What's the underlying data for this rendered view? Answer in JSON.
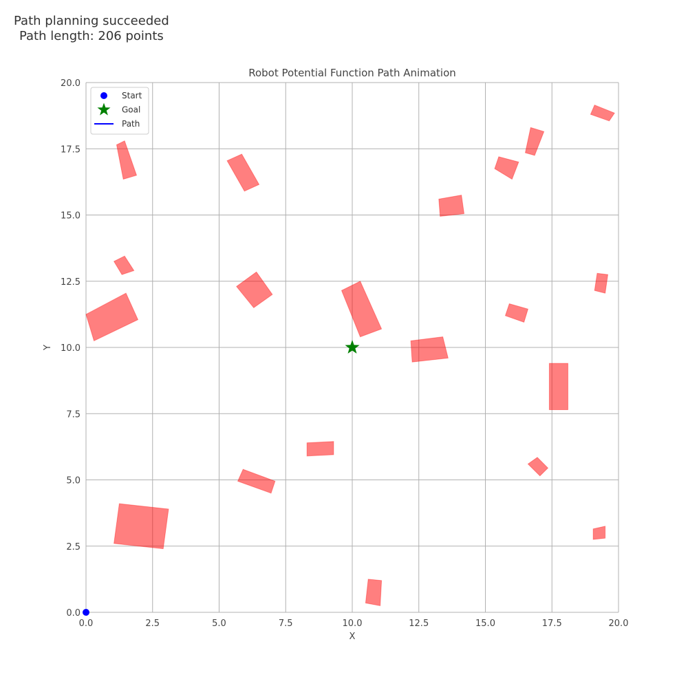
{
  "status": {
    "line1": "Path planning succeeded",
    "line2": "Path length: 206 points"
  },
  "chart_data": {
    "type": "scatter",
    "title": "Robot Potential Function Path Animation",
    "xlabel": "X",
    "ylabel": "Y",
    "xlim": [
      0,
      20
    ],
    "ylim": [
      0,
      20
    ],
    "xticks": [
      "0.0",
      "2.5",
      "5.0",
      "7.5",
      "10.0",
      "12.5",
      "15.0",
      "17.5",
      "20.0"
    ],
    "yticks": [
      "0.0",
      "2.5",
      "5.0",
      "7.5",
      "10.0",
      "12.5",
      "15.0",
      "17.5",
      "20.0"
    ],
    "grid": true,
    "legend": {
      "placement": "top-left",
      "entries": [
        {
          "label": "Start",
          "marker": "circle",
          "color": "#0000ff"
        },
        {
          "label": "Goal",
          "marker": "star",
          "color": "#008000"
        },
        {
          "label": "Path",
          "marker": "line",
          "color": "#0000ff"
        }
      ]
    },
    "start": {
      "x": 0,
      "y": 0
    },
    "goal": {
      "x": 10,
      "y": 10
    },
    "obstacle_color": "#ff0000",
    "obstacle_alpha": 0.5,
    "obstacles": [
      {
        "corners": [
          [
            1.15,
            17.65
          ],
          [
            1.45,
            17.8
          ],
          [
            1.9,
            16.5
          ],
          [
            1.4,
            16.35
          ]
        ]
      },
      {
        "corners": [
          [
            5.3,
            17.05
          ],
          [
            5.85,
            17.3
          ],
          [
            6.5,
            16.15
          ],
          [
            5.95,
            15.9
          ]
        ]
      },
      {
        "corners": [
          [
            1.05,
            13.25
          ],
          [
            1.45,
            13.45
          ],
          [
            1.8,
            12.9
          ],
          [
            1.35,
            12.75
          ]
        ]
      },
      {
        "corners": [
          [
            0,
            11.25
          ],
          [
            1.5,
            12.05
          ],
          [
            1.95,
            11.05
          ],
          [
            0.3,
            10.25
          ]
        ]
      },
      {
        "corners": [
          [
            5.65,
            12.3
          ],
          [
            6.4,
            12.85
          ],
          [
            7.0,
            12.0
          ],
          [
            6.3,
            11.5
          ]
        ]
      },
      {
        "corners": [
          [
            9.6,
            12.15
          ],
          [
            10.3,
            12.5
          ],
          [
            11.1,
            10.7
          ],
          [
            10.3,
            10.4
          ]
        ]
      },
      {
        "corners": [
          [
            12.2,
            10.25
          ],
          [
            13.4,
            10.4
          ],
          [
            13.6,
            9.6
          ],
          [
            12.25,
            9.45
          ]
        ]
      },
      {
        "corners": [
          [
            13.25,
            15.6
          ],
          [
            14.1,
            15.75
          ],
          [
            14.2,
            15.05
          ],
          [
            13.3,
            14.95
          ]
        ]
      },
      {
        "corners": [
          [
            15.35,
            16.75
          ],
          [
            15.5,
            17.2
          ],
          [
            16.25,
            17.0
          ],
          [
            16.0,
            16.35
          ]
        ]
      },
      {
        "corners": [
          [
            16.7,
            18.3
          ],
          [
            17.2,
            18.15
          ],
          [
            16.85,
            17.25
          ],
          [
            16.5,
            17.35
          ]
        ]
      },
      {
        "corners": [
          [
            18.95,
            18.8
          ],
          [
            19.1,
            19.15
          ],
          [
            19.85,
            18.85
          ],
          [
            19.65,
            18.55
          ]
        ]
      },
      {
        "corners": [
          [
            19.2,
            12.8
          ],
          [
            19.6,
            12.75
          ],
          [
            19.5,
            12.05
          ],
          [
            19.1,
            12.15
          ]
        ]
      },
      {
        "corners": [
          [
            15.75,
            11.2
          ],
          [
            15.9,
            11.65
          ],
          [
            16.6,
            11.45
          ],
          [
            16.45,
            10.95
          ]
        ]
      },
      {
        "corners": [
          [
            17.4,
            9.4
          ],
          [
            18.1,
            9.4
          ],
          [
            18.1,
            7.65
          ],
          [
            17.4,
            7.65
          ]
        ]
      },
      {
        "corners": [
          [
            8.3,
            6.4
          ],
          [
            9.3,
            6.45
          ],
          [
            9.3,
            5.95
          ],
          [
            8.3,
            5.9
          ]
        ]
      },
      {
        "corners": [
          [
            5.7,
            4.95
          ],
          [
            5.9,
            5.4
          ],
          [
            7.1,
            4.95
          ],
          [
            6.95,
            4.5
          ]
        ]
      },
      {
        "corners": [
          [
            16.6,
            5.6
          ],
          [
            16.95,
            5.85
          ],
          [
            17.35,
            5.45
          ],
          [
            17.05,
            5.15
          ]
        ]
      },
      {
        "corners": [
          [
            1.25,
            4.1
          ],
          [
            1.05,
            2.6
          ],
          [
            2.9,
            2.4
          ],
          [
            3.1,
            3.9
          ]
        ]
      },
      {
        "corners": [
          [
            19.05,
            3.15
          ],
          [
            19.5,
            3.25
          ],
          [
            19.5,
            2.8
          ],
          [
            19.05,
            2.75
          ]
        ]
      },
      {
        "corners": [
          [
            10.6,
            1.25
          ],
          [
            11.1,
            1.2
          ],
          [
            11.05,
            0.25
          ],
          [
            10.5,
            0.35
          ]
        ]
      }
    ]
  }
}
